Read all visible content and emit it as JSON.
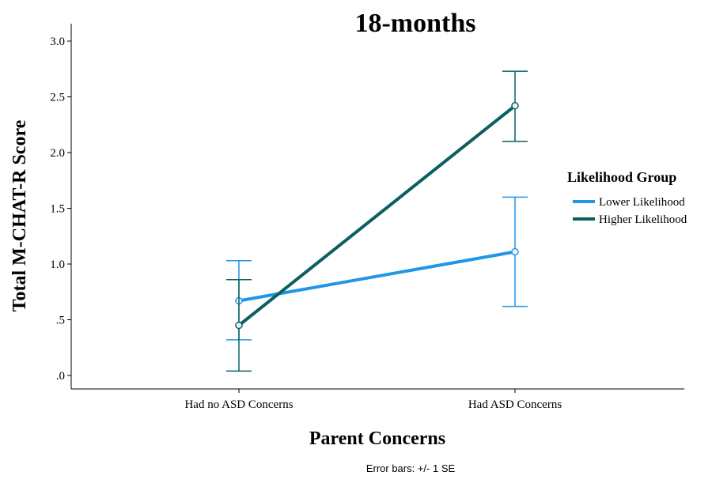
{
  "chart_data": {
    "type": "line",
    "title": "18-months",
    "xlabel": "Parent Concerns",
    "ylabel": "Total M-CHAT-R Score",
    "categories": [
      "Had no ASD Concerns",
      "Had ASD Concerns"
    ],
    "ylim": [
      0,
      3.0
    ],
    "yticks": [
      0,
      0.5,
      1.0,
      1.5,
      2.0,
      2.5,
      3.0
    ],
    "ytick_labels": [
      ".0",
      ".5",
      "1.0",
      "1.5",
      "2.0",
      "2.5",
      "3.0"
    ],
    "grid": false,
    "legend": {
      "title": "Likelihood Group",
      "placement": "right"
    },
    "footnote": "Error bars: +/- 1 SE",
    "series": [
      {
        "name": "Lower Likelihood",
        "color": "#2196e8",
        "values": [
          0.67,
          1.11
        ],
        "error_low": [
          0.32,
          0.62
        ],
        "error_high": [
          1.03,
          1.6
        ]
      },
      {
        "name": "Higher Likelihood",
        "color": "#0b5f5f",
        "values": [
          0.45,
          2.42
        ],
        "error_low": [
          0.04,
          2.1
        ],
        "error_high": [
          0.86,
          2.73
        ]
      }
    ]
  }
}
